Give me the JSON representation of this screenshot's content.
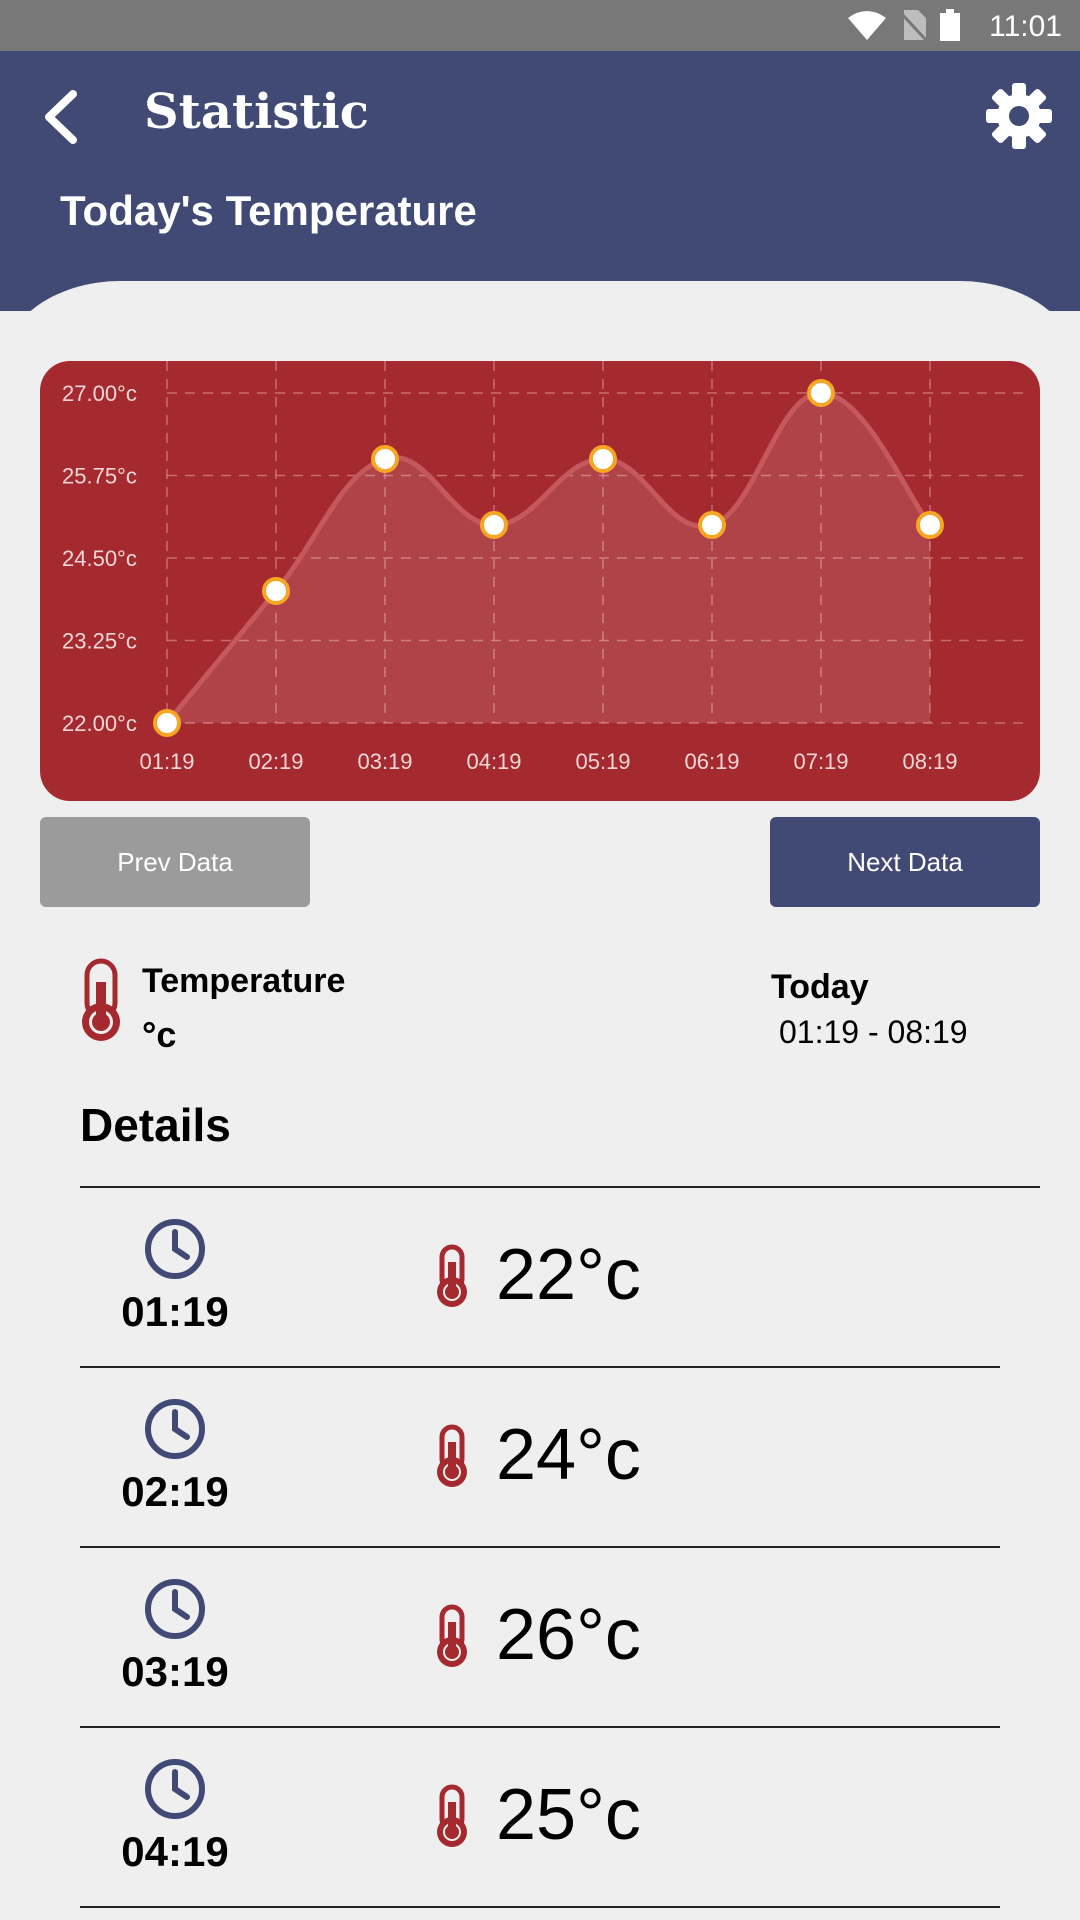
{
  "status_bar": {
    "time": "11:01"
  },
  "header": {
    "title": "Statistic",
    "subtitle": "Today's Temperature"
  },
  "chart_data": {
    "type": "line",
    "categories": [
      "01:19",
      "02:19",
      "03:19",
      "04:19",
      "05:19",
      "06:19",
      "07:19",
      "08:19"
    ],
    "values": [
      22,
      24,
      26,
      25,
      26,
      25,
      27,
      25
    ],
    "y_ticks": [
      "27.00°c",
      "25.75°c",
      "24.50°c",
      "23.25°c",
      "22.00°c"
    ],
    "ylim": [
      22,
      27
    ],
    "grid": true,
    "colors": {
      "background": "#a52a2f",
      "line": "#c4585c",
      "point_fill": "#ffffff",
      "point_stroke": "#f5a623"
    }
  },
  "buttons": {
    "prev_label": "Prev Data",
    "next_label": "Next Data"
  },
  "info": {
    "title": "Temperature",
    "unit": "°c",
    "period_label": "Today",
    "period_range": "01:19 - 08:19"
  },
  "details": {
    "title": "Details",
    "rows": [
      {
        "time": "01:19",
        "temp": "22°c"
      },
      {
        "time": "02:19",
        "temp": "24°c"
      },
      {
        "time": "03:19",
        "temp": "26°c"
      },
      {
        "time": "04:19",
        "temp": "25°c"
      }
    ]
  },
  "colors": {
    "primary": "#414a74",
    "accent_red": "#a52a2f",
    "muted": "#9b9b9b"
  }
}
